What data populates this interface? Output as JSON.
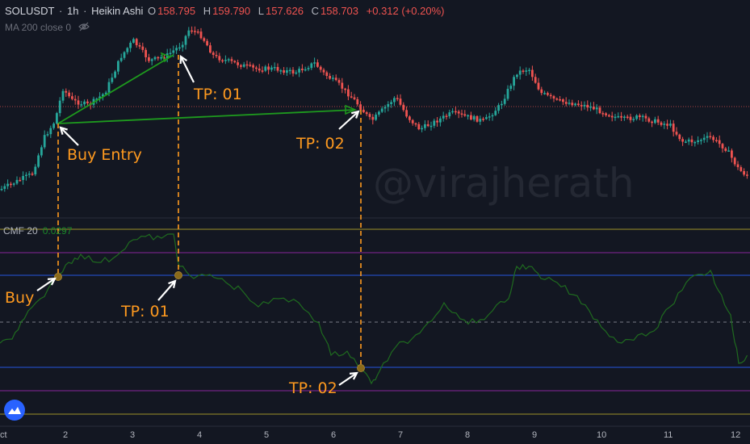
{
  "header": {
    "symbol": "SOLUSDT",
    "sep1": "·",
    "interval": "1h",
    "sep2": "·",
    "chart_style": "Heikin Ashi",
    "open_label": "O",
    "open": "158.795",
    "high_label": "H",
    "high": "159.790",
    "low_label": "L",
    "low": "157.626",
    "close_label": "C",
    "close": "158.703",
    "change": "+0.312 (+0.20%)"
  },
  "ma_indicator": {
    "label": "MA 200 close 0",
    "icon": "eye-hidden-icon"
  },
  "cmf_indicator": {
    "label": "CMF 20",
    "value": "0.0297"
  },
  "annotations": {
    "tp01_price": "TP: 01",
    "tp02_price": "TP: 02",
    "buy_entry": "Buy Entry",
    "buy": "Buy",
    "tp01_cmf": "TP: 01",
    "tp02_cmf": "TP: 02"
  },
  "watermark": "@virajherath",
  "x_axis": {
    "ticks": [
      "ct",
      "2",
      "3",
      "4",
      "5",
      "6",
      "7",
      "8",
      "9",
      "10",
      "11",
      "12"
    ]
  },
  "colors": {
    "background": "#131722",
    "bull": "#26a69a",
    "bear": "#ef5350",
    "trendline": "#1e9a1e",
    "cmf_line": "#1f6b1f",
    "annotation": "#ff9a1f",
    "blue_level": "#2962ff",
    "purple_level": "#9c27b0",
    "yellow_level": "#b5a62a"
  },
  "chart_data": {
    "type": "candlestick",
    "series_name": "SOLUSDT 1h Heikin Ashi",
    "ohlc_last": {
      "open": 158.795,
      "high": 159.79,
      "low": 157.626,
      "close": 158.703
    },
    "cmf_last": 0.0297,
    "x_ticks": [
      "ct",
      "2",
      "3",
      "4",
      "5",
      "6",
      "7",
      "8",
      "9",
      "10",
      "11",
      "12"
    ],
    "legend": "none"
  }
}
